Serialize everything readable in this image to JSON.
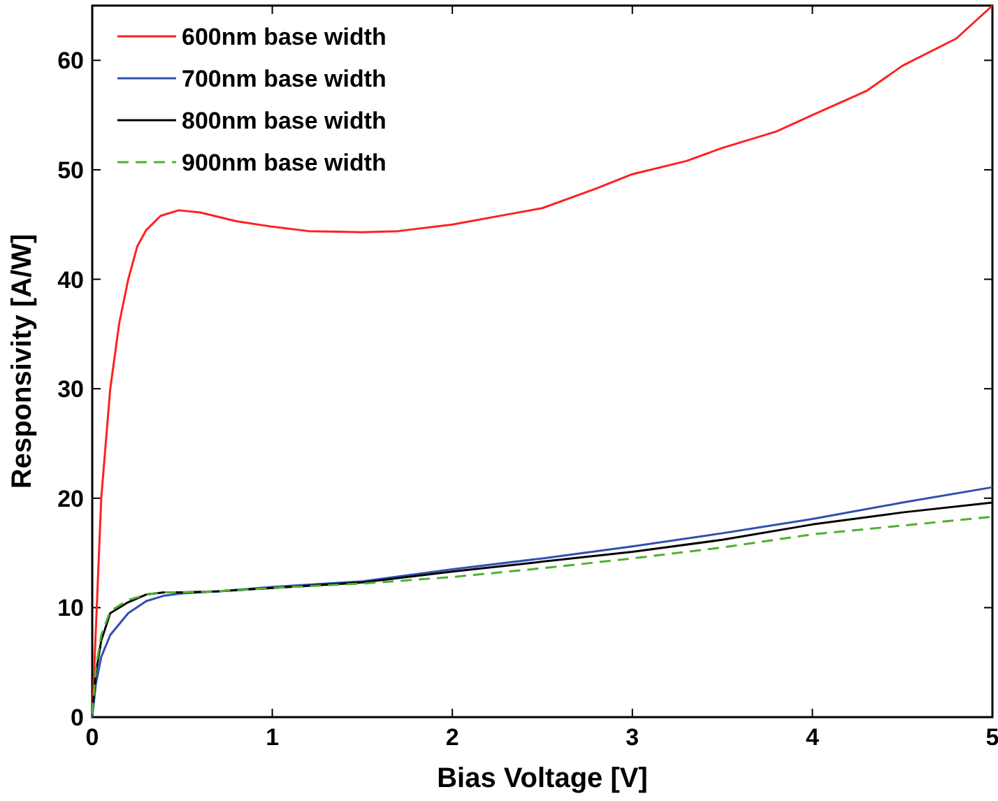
{
  "chart_data": {
    "type": "line",
    "xlabel": "Bias Voltage [V]",
    "ylabel": "Responsivity [A/W]",
    "xlim": [
      0,
      5
    ],
    "ylim": [
      0,
      65
    ],
    "xticks": [
      0,
      1,
      2,
      3,
      4,
      5
    ],
    "yticks": [
      0,
      10,
      20,
      30,
      40,
      50,
      60
    ],
    "grid": false,
    "legend": "top left",
    "series": [
      {
        "name": "600nm base width",
        "color": "#ff2020",
        "line_style": "solid",
        "x": [
          0,
          0.02,
          0.05,
          0.1,
          0.15,
          0.2,
          0.25,
          0.3,
          0.38,
          0.48,
          0.6,
          0.8,
          1,
          1.2,
          1.5,
          1.7,
          2,
          2.3,
          2.5,
          2.8,
          3,
          3.3,
          3.5,
          3.8,
          4,
          4.3,
          4.5,
          4.8,
          5
        ],
        "values": [
          0,
          8,
          20,
          30,
          36,
          40,
          43,
          44.5,
          45.8,
          46.3,
          46.1,
          45.3,
          44.8,
          44.4,
          44.3,
          44.4,
          45,
          45.9,
          46.5,
          48.3,
          49.6,
          50.8,
          52,
          53.5,
          55,
          57.2,
          59.5,
          62,
          65
        ]
      },
      {
        "name": "700nm base width",
        "color": "#3050b0",
        "line_style": "solid",
        "x": [
          0,
          0.02,
          0.05,
          0.1,
          0.2,
          0.3,
          0.4,
          0.5,
          0.7,
          1,
          1.5,
          2,
          2.5,
          3,
          3.5,
          4,
          4.5,
          5
        ],
        "values": [
          0,
          3,
          5.5,
          7.5,
          9.5,
          10.6,
          11.1,
          11.3,
          11.5,
          11.9,
          12.4,
          13.5,
          14.5,
          15.6,
          16.8,
          18.1,
          19.6,
          21
        ]
      },
      {
        "name": "800nm base width",
        "color": "#000000",
        "line_style": "solid",
        "x": [
          0,
          0.02,
          0.05,
          0.1,
          0.2,
          0.3,
          0.4,
          0.5,
          0.7,
          1,
          1.5,
          2,
          2.5,
          3,
          3.5,
          4,
          4.5,
          5
        ],
        "values": [
          0.5,
          4,
          7,
          9.5,
          10.5,
          11.2,
          11.4,
          11.4,
          11.5,
          11.8,
          12.3,
          13.3,
          14.2,
          15.1,
          16.2,
          17.6,
          18.7,
          19.6
        ]
      },
      {
        "name": "900nm base width",
        "color": "#50b030",
        "line_style": "dashed",
        "x": [
          0,
          0.02,
          0.05,
          0.1,
          0.2,
          0.3,
          0.4,
          0.5,
          0.7,
          1,
          1.5,
          2,
          2.5,
          3,
          3.5,
          4,
          4.5,
          5
        ],
        "values": [
          0.3,
          4.5,
          7.5,
          9.7,
          10.7,
          11.2,
          11.4,
          11.4,
          11.5,
          11.8,
          12.2,
          12.8,
          13.6,
          14.5,
          15.5,
          16.7,
          17.5,
          18.3
        ]
      }
    ]
  }
}
